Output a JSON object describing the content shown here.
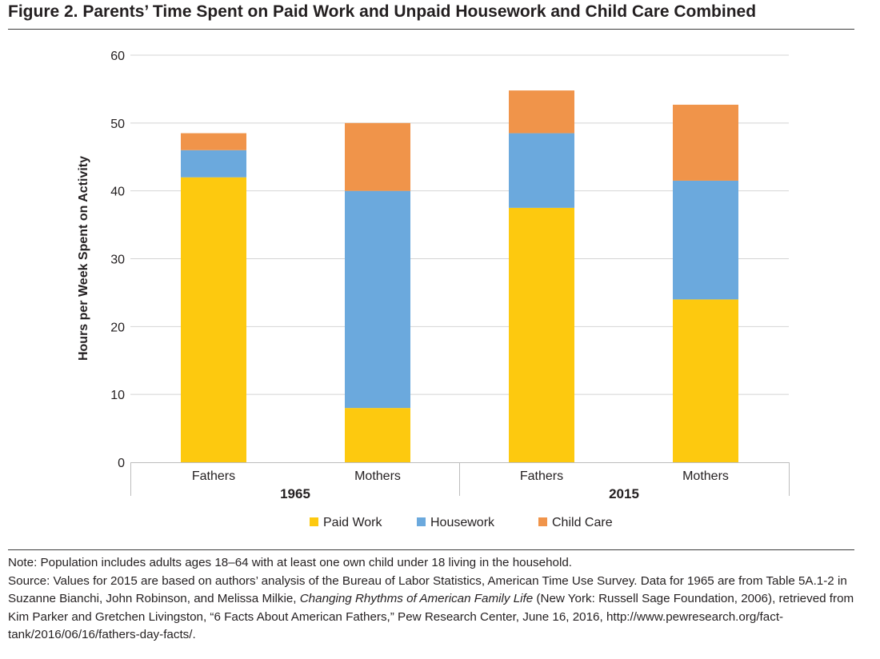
{
  "figure": {
    "title": "Figure 2. Parents’ Time Spent on Paid Work and Unpaid Housework and Child Care Combined"
  },
  "notes": {
    "note": "Note: Population includes adults ages 18–64 with at least one own child under 18 living in the household.",
    "source_before_italic": "Source: Values for 2015 are based on authors’ analysis of the Bureau of Labor Statistics, American Time Use Survey. Data for 1965 are from Table 5A.1-2 in Suzanne Bianchi, John Robinson, and Melissa Milkie, ",
    "source_italic": "Changing Rhythms of American Family Life",
    "source_after_italic": " (New York: Russell Sage Foundation, 2006), retrieved from Kim Parker and Gretchen Livingston, “6 Facts About American Fathers,” Pew Research Center, June 16, 2016, http://www.pewresearch.org/fact-tank/2016/06/16/fathers-day-facts/."
  },
  "chart_data": {
    "type": "bar",
    "stacked": true,
    "title": "",
    "ylabel": "Hours per Week Spent on Activity",
    "xlabel": "",
    "ylim": [
      0,
      60
    ],
    "yticks": [
      0,
      10,
      20,
      30,
      40,
      50,
      60
    ],
    "grid": true,
    "legend_position": "bottom",
    "groups": [
      {
        "label": "1965",
        "categories": [
          "Fathers",
          "Mothers"
        ]
      },
      {
        "label": "2015",
        "categories": [
          "Fathers",
          "Mothers"
        ]
      }
    ],
    "categories": [
      "Fathers",
      "Mothers",
      "Fathers",
      "Mothers"
    ],
    "series": [
      {
        "name": "Paid Work",
        "color": "#fdc90f",
        "values": [
          42,
          8,
          37.5,
          24
        ]
      },
      {
        "name": "Housework",
        "color": "#6ba9dd",
        "values": [
          4,
          32,
          11,
          17.5
        ]
      },
      {
        "name": "Child Care",
        "color": "#f0944a",
        "values": [
          2.5,
          10,
          6.3,
          11.2
        ]
      }
    ],
    "colors": {
      "grid": "#d4d4d4",
      "axis": "#bdbdbd"
    }
  }
}
